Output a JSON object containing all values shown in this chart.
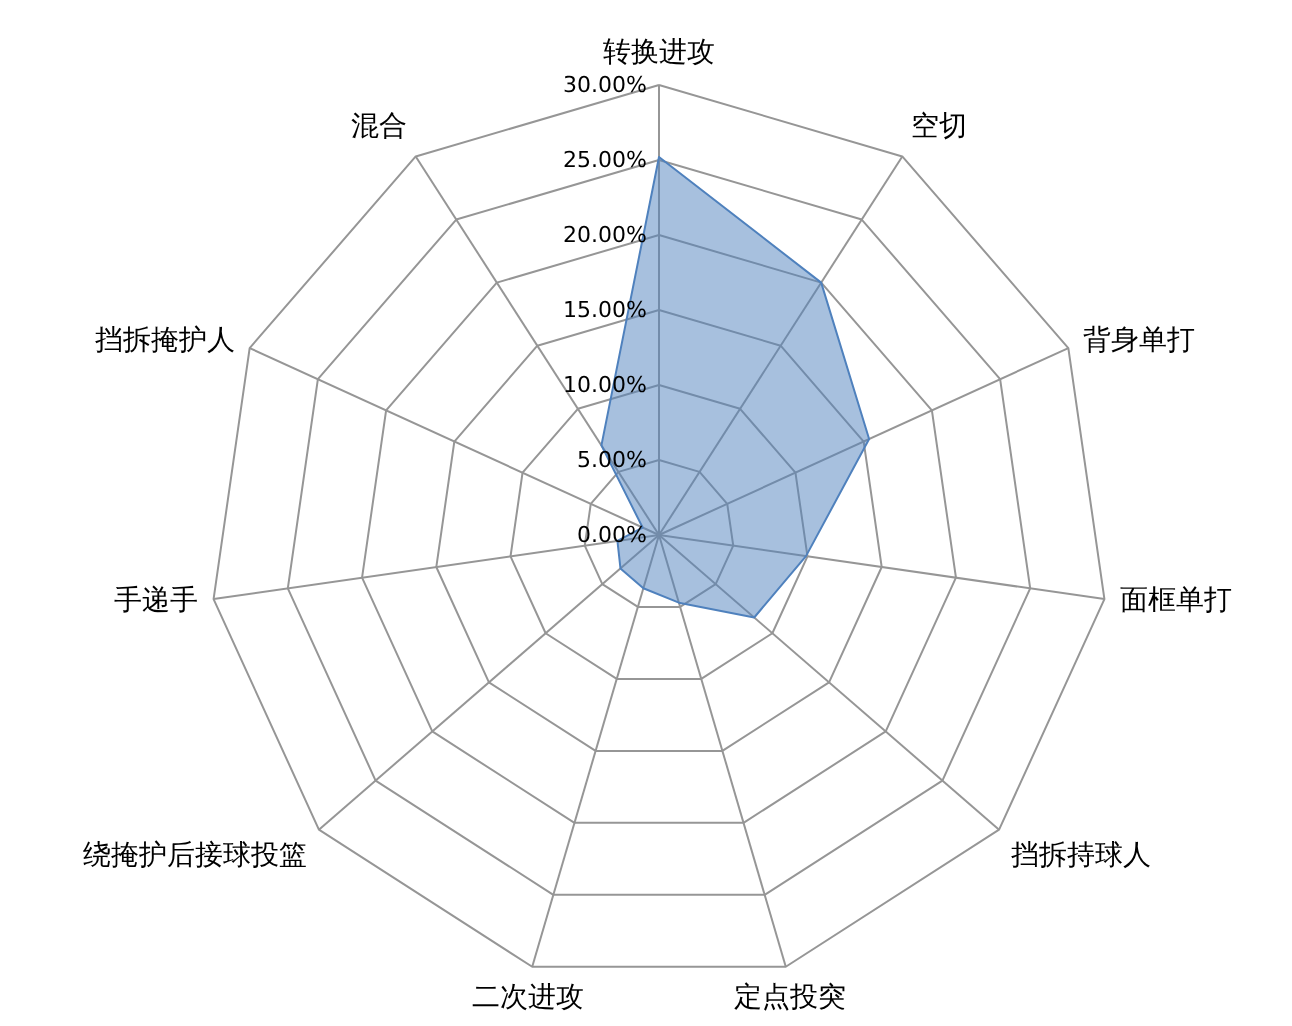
{
  "chart_data": {
    "type": "radar",
    "categories": [
      "转换进攻",
      "空切",
      "背身单打",
      "面框单打",
      "挡拆持球人",
      "定点投突",
      "二次进攻",
      "绕掩护后接球投篮",
      "手递手",
      "挡拆掩护人",
      "混合"
    ],
    "series": [
      {
        "color": "#4f81bd",
        "values": [
          25.2,
          20.0,
          15.4,
          9.9,
          8.4,
          4.7,
          3.7,
          3.4,
          2.8,
          1.2,
          7.1
        ]
      }
    ],
    "ylim": [
      0,
      30
    ],
    "yticks": [
      {
        "value": 0,
        "label": "0.00%"
      },
      {
        "value": 5,
        "label": "5.00%"
      },
      {
        "value": 10,
        "label": "10.00%"
      },
      {
        "value": 15,
        "label": "15.00%"
      },
      {
        "value": 20,
        "label": "20.00%"
      },
      {
        "value": 25,
        "label": "25.00%"
      },
      {
        "value": 30,
        "label": "30.00%"
      }
    ],
    "grid": true
  }
}
